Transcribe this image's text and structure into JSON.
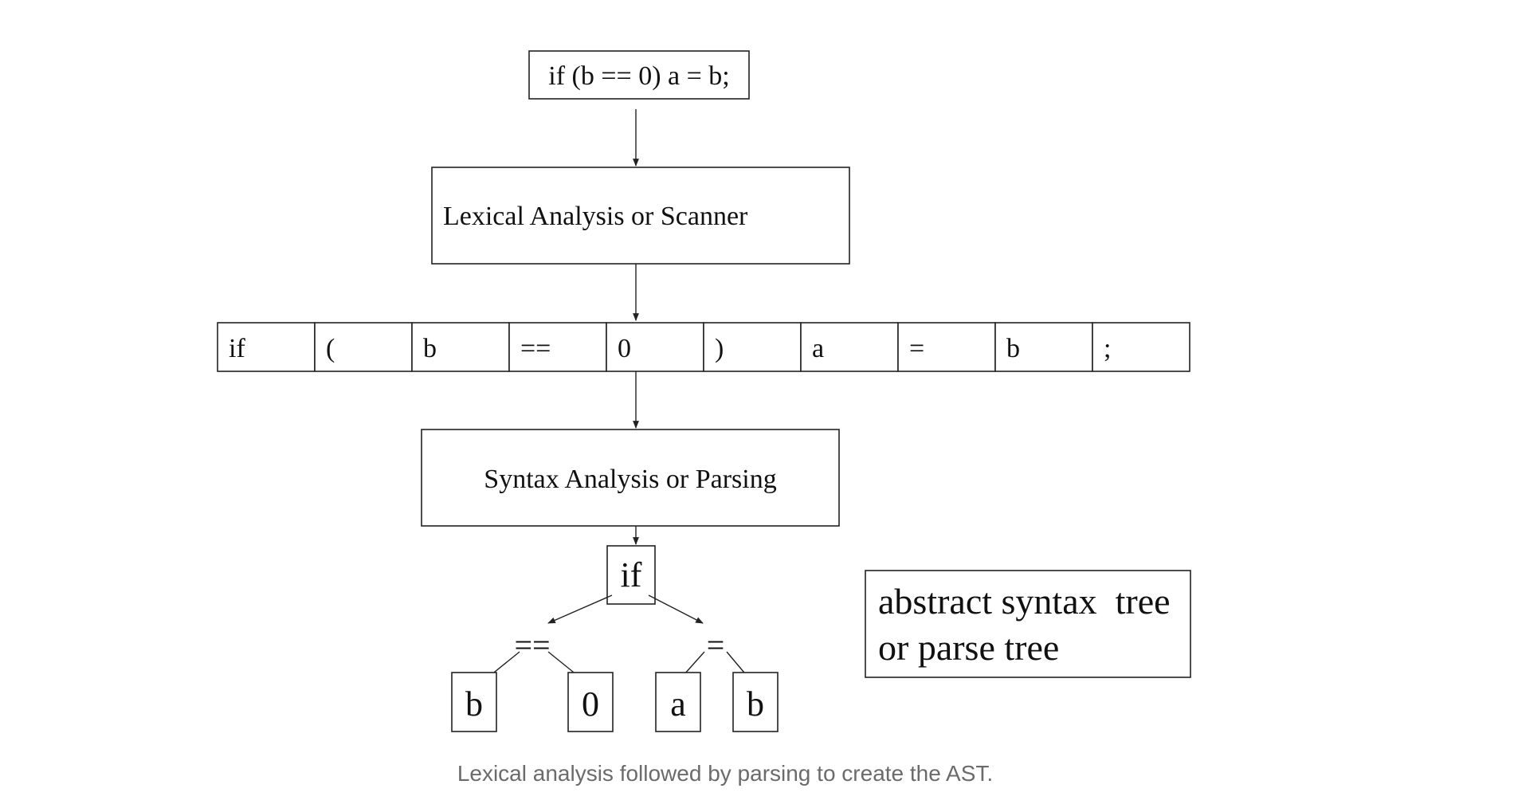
{
  "source_statement": "if (b == 0) a = b;",
  "lexer_stage": "Lexical Analysis or Scanner",
  "tokens": [
    "if",
    "(",
    "b",
    "==",
    "0",
    ")",
    "a",
    "=",
    "b",
    ";"
  ],
  "parser_stage": "Syntax Analysis or Parsing",
  "tree": {
    "root": "if",
    "left_op": "==",
    "right_op": "=",
    "leaves": [
      "b",
      "0",
      "a",
      "b"
    ]
  },
  "tree_label": {
    "line1": "abstract syntax  tree",
    "line2": "or parse tree"
  },
  "caption": "Lexical analysis followed by parsing to create the AST."
}
